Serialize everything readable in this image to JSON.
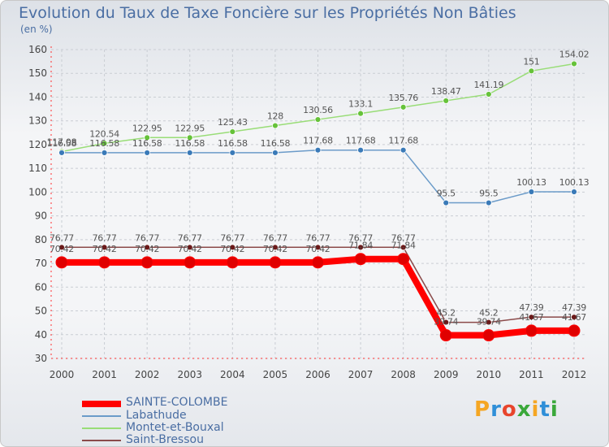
{
  "title": "Evolution du Taux de Taxe Foncière sur les Propriétés Non Bâties",
  "unit": "(en %)",
  "logo": {
    "text": "Proxiti",
    "letters": [
      "P",
      "r",
      "o",
      "x",
      "i",
      "t",
      "i"
    ],
    "colors": [
      "#f5a623",
      "#2f8fd8",
      "#e8452c",
      "#3aa83a",
      "#f5a623",
      "#2f8fd8",
      "#3aa83a"
    ]
  },
  "chart_data": {
    "type": "line",
    "title": "Evolution du Taux de Taxe Foncière sur les Propriétés Non Bâties",
    "ylabel": "(en %)",
    "xlabel": "",
    "categories": [
      "2000",
      "2001",
      "2002",
      "2003",
      "2004",
      "2005",
      "2006",
      "2007",
      "2008",
      "2009",
      "2010",
      "2011",
      "2012"
    ],
    "ylim": [
      30,
      160
    ],
    "yticks": [
      30,
      40,
      50,
      60,
      70,
      80,
      90,
      100,
      110,
      120,
      130,
      140,
      150,
      160
    ],
    "grid": true,
    "legend_position": "bottom-left",
    "series": [
      {
        "name": "SAINTE-COLOMBE",
        "color": "#ff0000",
        "marker": "#e00000",
        "thick": true,
        "values": [
          70.42,
          70.42,
          70.42,
          70.42,
          70.42,
          70.42,
          70.42,
          71.84,
          71.84,
          39.74,
          39.74,
          41.67,
          41.67
        ],
        "labels": [
          "70.42",
          "70.42",
          "70.42",
          "70.42",
          "70.42",
          "70.42",
          "70.42",
          "71.84",
          "71.84",
          "39.74",
          "39.74",
          "41.67",
          "41.67"
        ]
      },
      {
        "name": "Labathude",
        "color": "#6b9bc9",
        "marker": "#3a7ab8",
        "thick": false,
        "values": [
          116.58,
          116.58,
          116.58,
          116.58,
          116.58,
          116.58,
          117.68,
          117.68,
          117.68,
          95.5,
          95.5,
          100.13,
          100.13
        ],
        "labels": [
          "116.58",
          "116.58",
          "116.58",
          "116.58",
          "116.58",
          "116.58",
          "117.68",
          "117.68",
          "117.68",
          "95.5",
          "95.5",
          "100.13",
          "100.13"
        ]
      },
      {
        "name": "Montet-et-Bouxal",
        "color": "#99dd77",
        "marker": "#66c23a",
        "thick": false,
        "values": [
          117.08,
          120.54,
          122.95,
          122.95,
          125.43,
          128,
          130.56,
          133.1,
          135.76,
          138.47,
          141.19,
          151,
          154.02
        ],
        "labels": [
          "117.08",
          "120.54",
          "122.95",
          "122.95",
          "125.43",
          "128",
          "130.56",
          "133.1",
          "135.76",
          "138.47",
          "141.19",
          "151",
          "154.02"
        ]
      },
      {
        "name": "Saint-Bressou",
        "color": "#8b4a4a",
        "marker": "#6b1a1a",
        "thick": false,
        "values": [
          76.77,
          76.77,
          76.77,
          76.77,
          76.77,
          76.77,
          76.77,
          76.77,
          76.77,
          45.2,
          45.2,
          47.39,
          47.39
        ],
        "labels": [
          "76.77",
          "76.77",
          "76.77",
          "76.77",
          "76.77",
          "76.77",
          "76.77",
          "76.77",
          "76.77",
          "45.2",
          "45.2",
          "47.39",
          "47.39"
        ]
      }
    ]
  }
}
